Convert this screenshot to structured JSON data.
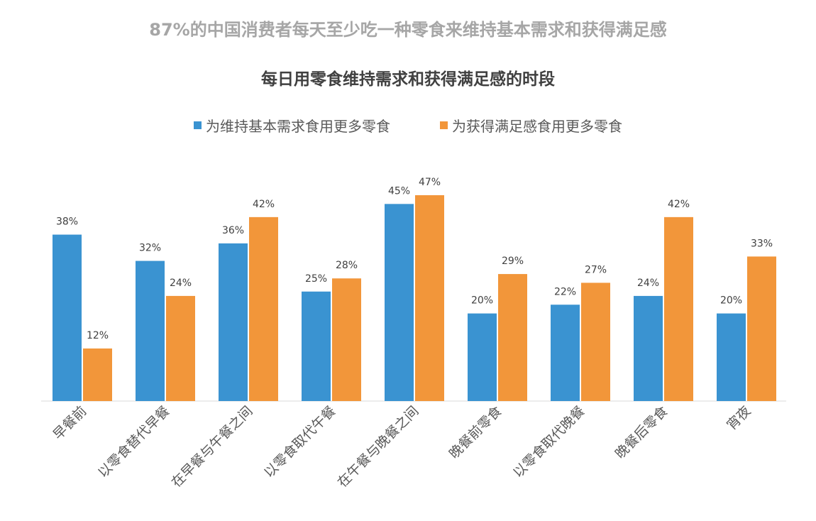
{
  "chart_data": {
    "type": "bar",
    "title": "每日用零食维持需求和获得满足感的时段",
    "header": "87%的中国消费者每天至少吃一种零食来维持基本需求和获得满足感",
    "categories": [
      "早餐前",
      "以零食替代早餐",
      "在早餐与午餐之间",
      "以零食取代午餐",
      "在午餐与晚餐之间",
      "晚餐前零食",
      "以零食取代晚餐",
      "晚餐后零食",
      "宵夜"
    ],
    "series": [
      {
        "name": "为维持基本需求食用更多零食",
        "color": "#3a93d1",
        "values": [
          38,
          32,
          36,
          25,
          45,
          20,
          22,
          24,
          20
        ]
      },
      {
        "name": "为获得满足感食用更多零食",
        "color": "#f2963a",
        "values": [
          12,
          24,
          42,
          28,
          47,
          29,
          27,
          42,
          33
        ]
      }
    ],
    "unit": "%",
    "ylim": [
      0,
      50
    ],
    "grid": false,
    "legend_position": "top"
  }
}
